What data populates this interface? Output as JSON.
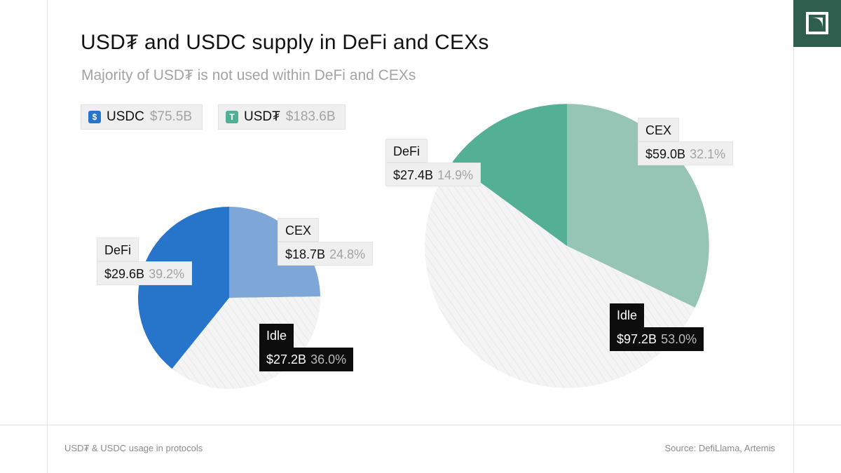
{
  "header": {
    "title": "USD₮ and USDC supply in DeFi and CEXs",
    "subtitle": "Majority of USD₮ is not used within DeFi and CEXs"
  },
  "legend": [
    {
      "name": "USDC",
      "value": "$75.5B",
      "icon": "usdc-icon",
      "color": "#2775ca"
    },
    {
      "name": "USD₮",
      "value": "$183.6B",
      "icon": "tether-icon",
      "color": "#50af95"
    }
  ],
  "colors": {
    "usdc_defi": "#2775ca",
    "usdc_cex": "#7ea6d6",
    "tether_defi": "#53b094",
    "tether_cex": "#96c5b6",
    "idle": "#f4f4f4",
    "brand": "#2f5e4e"
  },
  "chart_data": [
    {
      "type": "pie",
      "name": "USDC",
      "total": 75.5,
      "slices": [
        {
          "label": "CEX",
          "value": 18.7,
          "value_text": "$18.7B",
          "percent": 24.8,
          "percent_text": "24.8%"
        },
        {
          "label": "Idle",
          "value": 27.2,
          "value_text": "$27.2B",
          "percent": 36.0,
          "percent_text": "36.0%"
        },
        {
          "label": "DeFi",
          "value": 29.6,
          "value_text": "$29.6B",
          "percent": 39.2,
          "percent_text": "39.2%"
        }
      ]
    },
    {
      "type": "pie",
      "name": "USD₮",
      "total": 183.6,
      "slices": [
        {
          "label": "CEX",
          "value": 59.0,
          "value_text": "$59.0B",
          "percent": 32.1,
          "percent_text": "32.1%"
        },
        {
          "label": "Idle",
          "value": 97.2,
          "value_text": "$97.2B",
          "percent": 53.0,
          "percent_text": "53.0%"
        },
        {
          "label": "DeFi",
          "value": 27.4,
          "value_text": "$27.4B",
          "percent": 14.9,
          "percent_text": "14.9%"
        }
      ]
    }
  ],
  "footer": {
    "caption": "USD₮ & USDC usage in protocols",
    "source": "Source: DefiLlama, Artemis"
  }
}
